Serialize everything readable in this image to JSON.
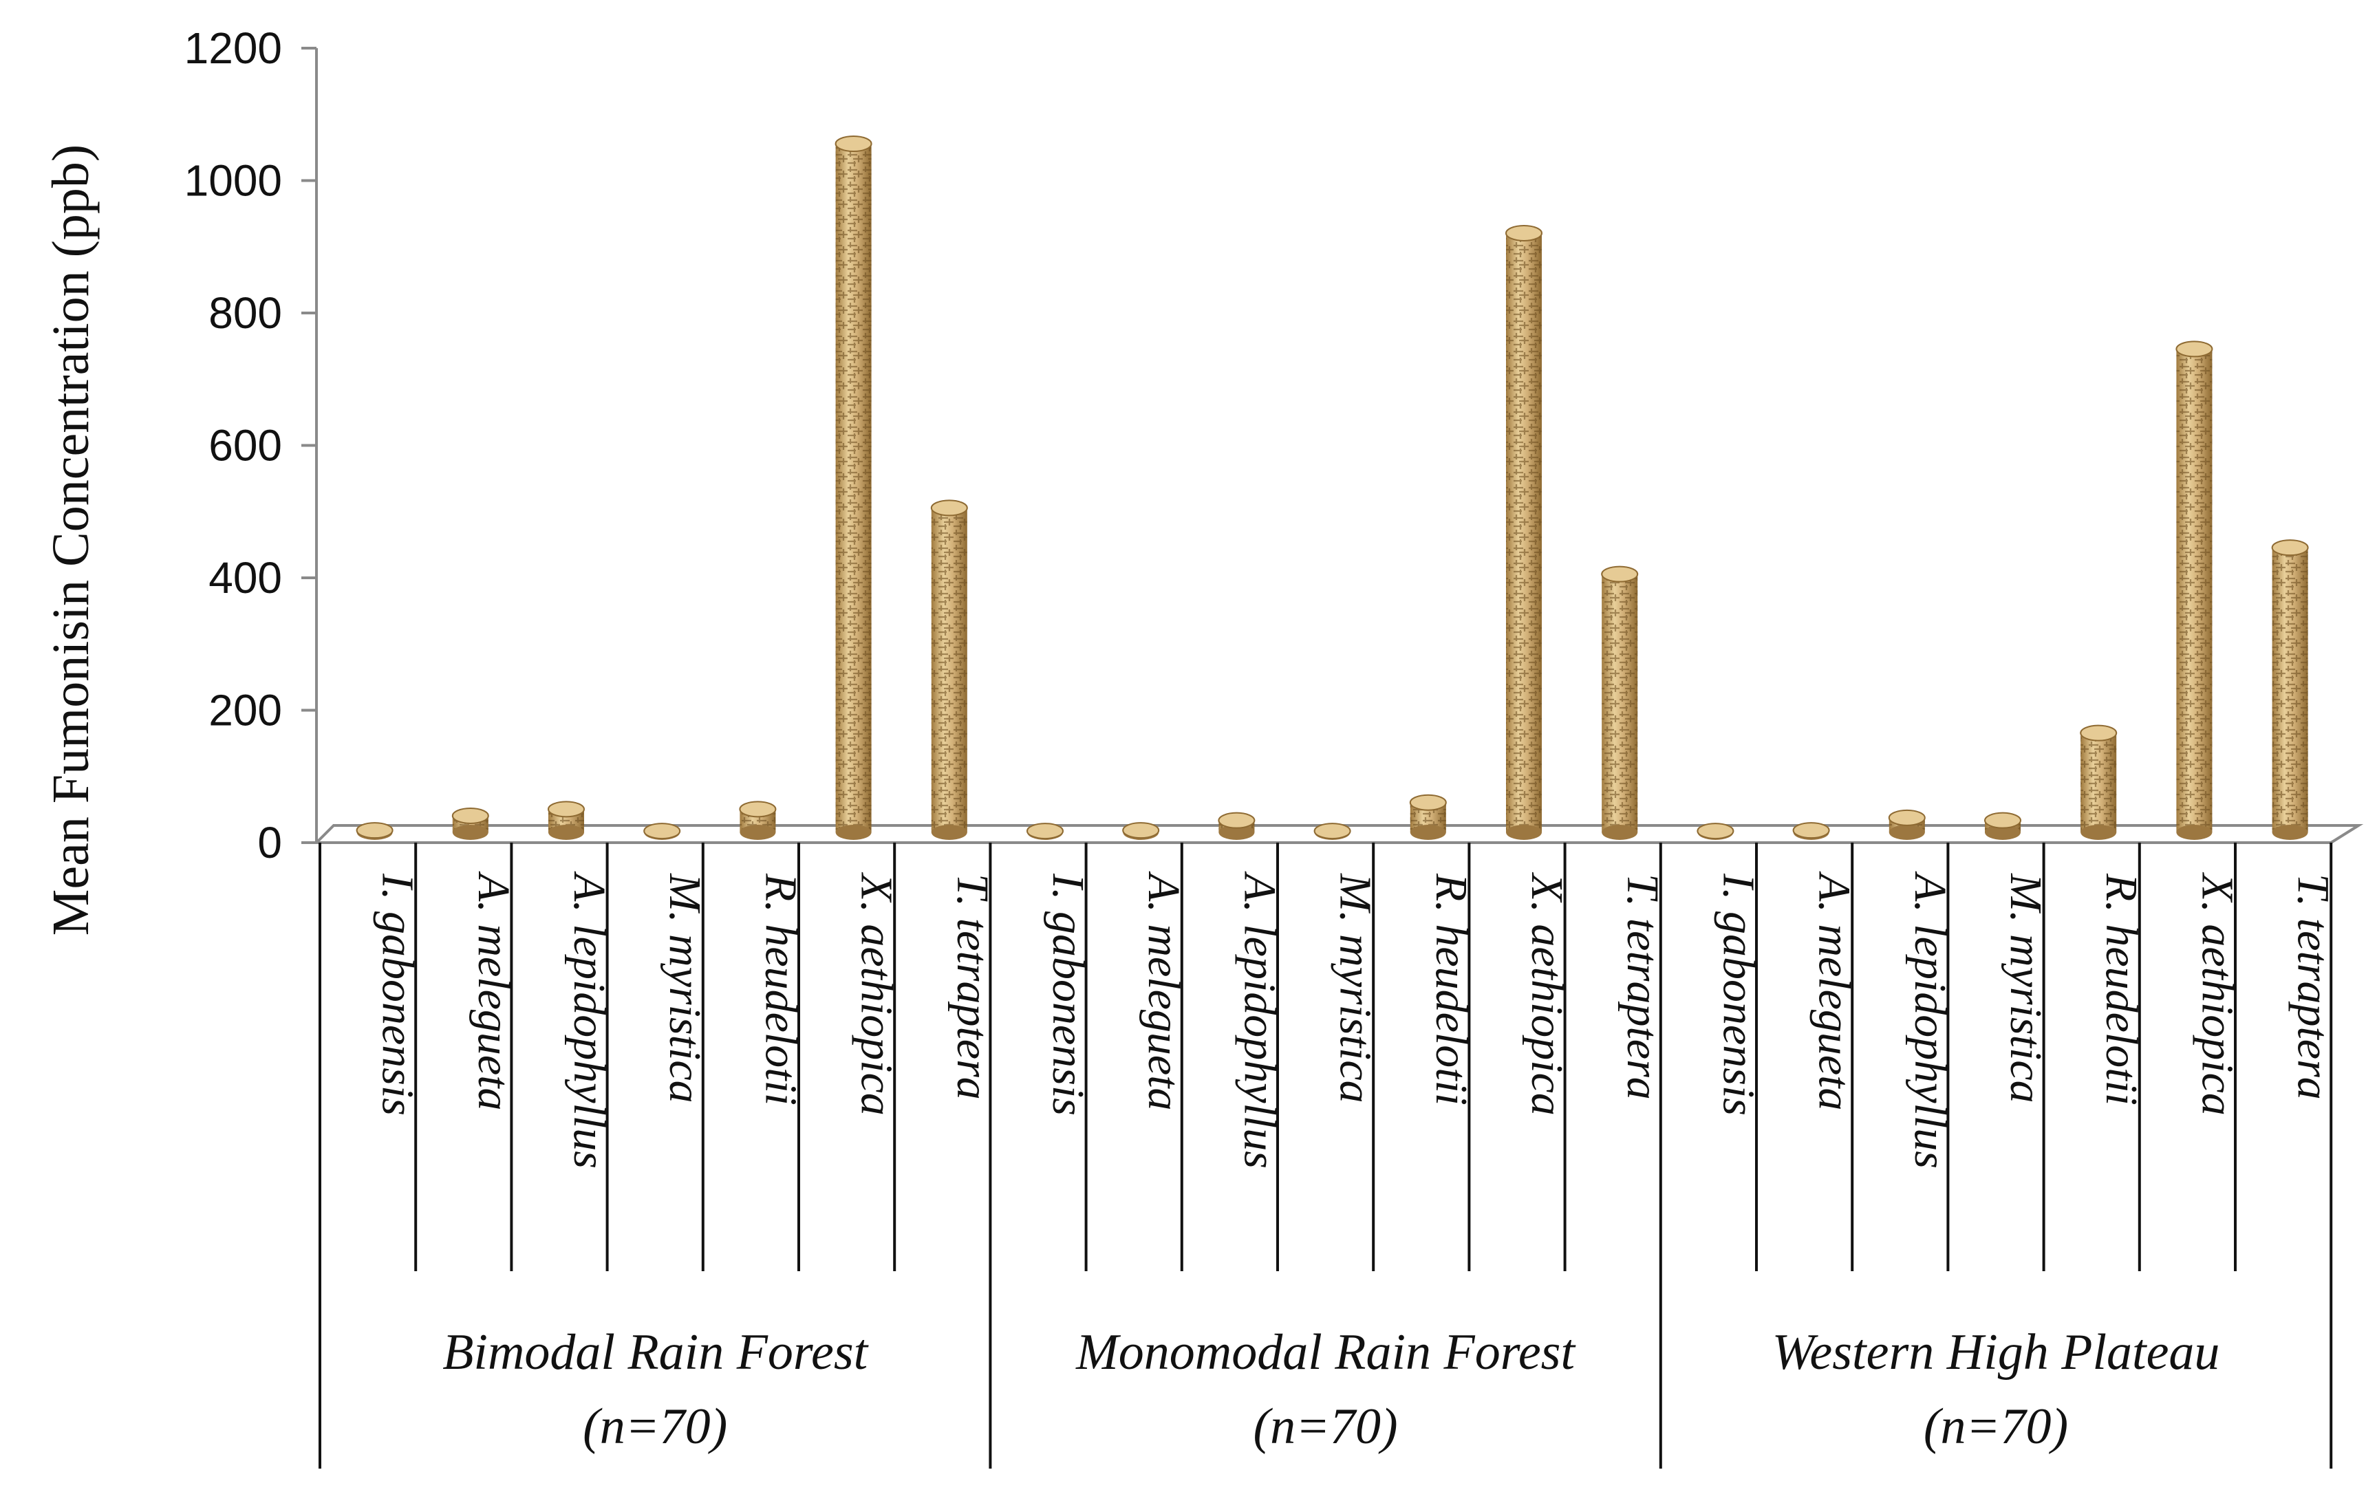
{
  "chart_data": {
    "type": "bar",
    "ylabel": "Mean Fumonisin Concentration (ppb)",
    "xlabel": "",
    "ylim": [
      0,
      1200
    ],
    "yticks": [
      0,
      200,
      400,
      600,
      800,
      1000,
      1200
    ],
    "grid": false,
    "legend": "none",
    "bar_color": "#c9a468",
    "groups": [
      {
        "label": "Bimodal Rain Forest",
        "n_label": "(n=70)",
        "categories": [
          "I. gabonensis",
          "A. melegueta",
          "A. lepidophyllus",
          "M. myristica",
          "R. heudelotii",
          "X. aethiopica",
          "T. tetraptera"
        ],
        "values": [
          3,
          25,
          35,
          2,
          35,
          1040,
          490
        ]
      },
      {
        "label": "Monomodal Rain Forest",
        "n_label": "(n=70)",
        "categories": [
          "I. gabonensis",
          "A. melegueta",
          "A. lepidophyllus",
          "M. myristica",
          "R. heudelotii",
          "X. aethiopica",
          "T. tetraptera"
        ],
        "values": [
          2,
          3,
          18,
          2,
          45,
          905,
          390
        ]
      },
      {
        "label": "Western High Plateau",
        "n_label": "(n=70)",
        "categories": [
          "I. gabonensis",
          "A. melegueta",
          "A. lepidophyllus",
          "M. myristica",
          "R. heudelotii",
          "X. aethiopica",
          "T. tetraptera"
        ],
        "values": [
          2,
          3,
          22,
          18,
          150,
          730,
          430
        ]
      }
    ]
  }
}
